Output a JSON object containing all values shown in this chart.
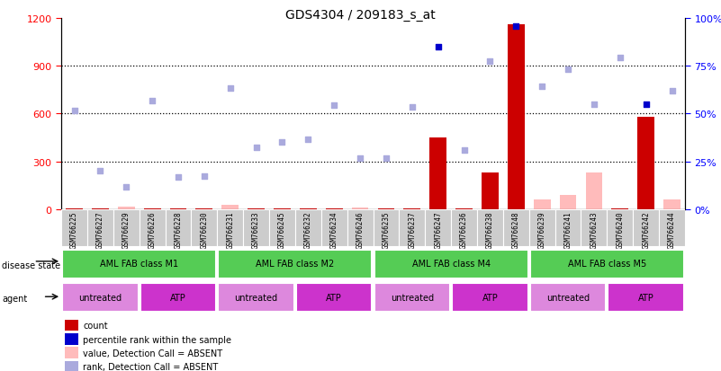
{
  "title": "GDS4304 / 209183_s_at",
  "samples": [
    "GSM766225",
    "GSM766227",
    "GSM766229",
    "GSM766226",
    "GSM766228",
    "GSM766230",
    "GSM766231",
    "GSM766233",
    "GSM766245",
    "GSM766232",
    "GSM766234",
    "GSM766246",
    "GSM766235",
    "GSM766237",
    "GSM766247",
    "GSM766236",
    "GSM766238",
    "GSM766248",
    "GSM766239",
    "GSM766241",
    "GSM766243",
    "GSM766240",
    "GSM766242",
    "GSM766244"
  ],
  "count_values": [
    5,
    5,
    5,
    5,
    5,
    5,
    5,
    5,
    5,
    5,
    5,
    5,
    5,
    5,
    450,
    5,
    230,
    1160,
    5,
    5,
    5,
    5,
    580,
    5
  ],
  "value_absent": [
    false,
    false,
    true,
    false,
    false,
    false,
    true,
    false,
    false,
    false,
    false,
    true,
    false,
    false,
    false,
    false,
    false,
    false,
    true,
    true,
    true,
    false,
    false,
    true
  ],
  "value_absent_heights": [
    8,
    8,
    18,
    8,
    8,
    8,
    25,
    8,
    8,
    8,
    8,
    8,
    8,
    8,
    8,
    8,
    8,
    8,
    60,
    90,
    230,
    8,
    8,
    60
  ],
  "rank_values": [
    620,
    240,
    140,
    680,
    200,
    210,
    760,
    390,
    420,
    440,
    650,
    320,
    320,
    640,
    1020,
    370,
    930,
    1150,
    770,
    880,
    660,
    950,
    660,
    740
  ],
  "rank_absent_flags": [
    true,
    true,
    true,
    true,
    true,
    true,
    true,
    true,
    true,
    true,
    true,
    true,
    true,
    true,
    false,
    true,
    true,
    false,
    true,
    true,
    true,
    true,
    false,
    true
  ],
  "disease_state": [
    {
      "label": "AML FAB class M1",
      "start": 0,
      "end": 6
    },
    {
      "label": "AML FAB class M2",
      "start": 6,
      "end": 12
    },
    {
      "label": "AML FAB class M4",
      "start": 12,
      "end": 18
    },
    {
      "label": "AML FAB class M5",
      "start": 18,
      "end": 24
    }
  ],
  "agent": [
    {
      "label": "untreated",
      "start": 0,
      "end": 3,
      "color": "#dd88dd"
    },
    {
      "label": "ATP",
      "start": 3,
      "end": 6,
      "color": "#cc33cc"
    },
    {
      "label": "untreated",
      "start": 6,
      "end": 9,
      "color": "#dd88dd"
    },
    {
      "label": "ATP",
      "start": 9,
      "end": 12,
      "color": "#cc33cc"
    },
    {
      "label": "untreated",
      "start": 12,
      "end": 15,
      "color": "#dd88dd"
    },
    {
      "label": "ATP",
      "start": 15,
      "end": 18,
      "color": "#cc33cc"
    },
    {
      "label": "untreated",
      "start": 18,
      "end": 21,
      "color": "#dd88dd"
    },
    {
      "label": "ATP",
      "start": 21,
      "end": 24,
      "color": "#cc33cc"
    }
  ],
  "ylim_left": [
    0,
    1200
  ],
  "ylim_right": [
    0,
    100
  ],
  "yticks_left": [
    0,
    300,
    600,
    900,
    1200
  ],
  "yticks_right": [
    0,
    25,
    50,
    75,
    100
  ],
  "ytick_labels_right": [
    "0%",
    "25%",
    "50%",
    "75%",
    "100%"
  ],
  "bar_color_present": "#cc0000",
  "bar_color_absent": "#ffbbbb",
  "rank_color_present": "#0000cc",
  "rank_color_absent": "#aaaadd",
  "disease_color": "#55cc55",
  "sample_bg_color": "#cccccc",
  "legend_items": [
    {
      "color": "#cc0000",
      "label": "count"
    },
    {
      "color": "#0000cc",
      "label": "percentile rank within the sample"
    },
    {
      "color": "#ffbbbb",
      "label": "value, Detection Call = ABSENT"
    },
    {
      "color": "#aaaadd",
      "label": "rank, Detection Call = ABSENT"
    }
  ]
}
